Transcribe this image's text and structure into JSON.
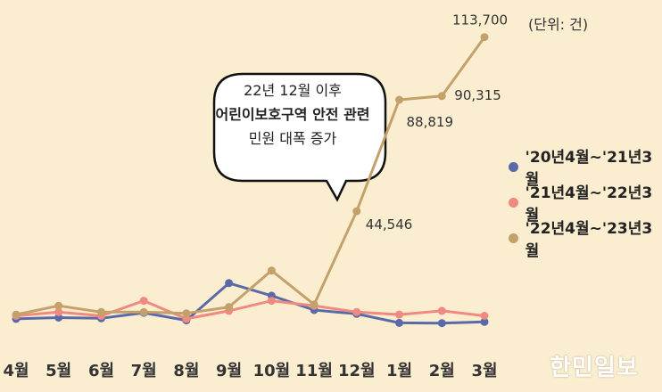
{
  "unit_note": "(단위: 건)",
  "callout": {
    "line1": "22년 12월 이후",
    "line2": "어린이보호구역 안전 관련",
    "line3": "민원 대폭 증가"
  },
  "watermark": "한민일보",
  "colors": {
    "background": "#fbeed0",
    "series_20_21": "#5a6aa8",
    "series_21_22": "#f08a80",
    "series_22_23": "#c4a06a"
  },
  "chart_data": {
    "type": "line",
    "categories": [
      "4월",
      "5월",
      "6월",
      "7월",
      "8월",
      "9월",
      "10월",
      "11월",
      "12월",
      "1월",
      "2월",
      "3월"
    ],
    "series": [
      {
        "name": "'20년4월~'21년3월",
        "color": "#5a6aa8",
        "values": [
          1800,
          2300,
          2000,
          4200,
          1200,
          16000,
          11000,
          5300,
          3800,
          200,
          100,
          600
        ]
      },
      {
        "name": "'21년4월~'22년3월",
        "color": "#f08a80",
        "values": [
          3000,
          4500,
          3000,
          9000,
          1800,
          5000,
          9000,
          7000,
          4500,
          3500,
          5000,
          3000
        ]
      },
      {
        "name": "'22년4월~'23년3월",
        "color": "#c4a06a",
        "values": [
          3500,
          7000,
          4500,
          4500,
          4000,
          6500,
          21000,
          7500,
          44546,
          88819,
          90315,
          113700
        ]
      }
    ],
    "data_labels": [
      {
        "series": 2,
        "index": 8,
        "text": "44,546"
      },
      {
        "series": 2,
        "index": 9,
        "text": "88,819"
      },
      {
        "series": 2,
        "index": 10,
        "text": "90,315"
      },
      {
        "series": 2,
        "index": 11,
        "text": "113,700"
      }
    ],
    "ylim": [
      0,
      115000
    ],
    "xlabel": "",
    "ylabel": "",
    "grid": false,
    "legend_position": "right"
  }
}
